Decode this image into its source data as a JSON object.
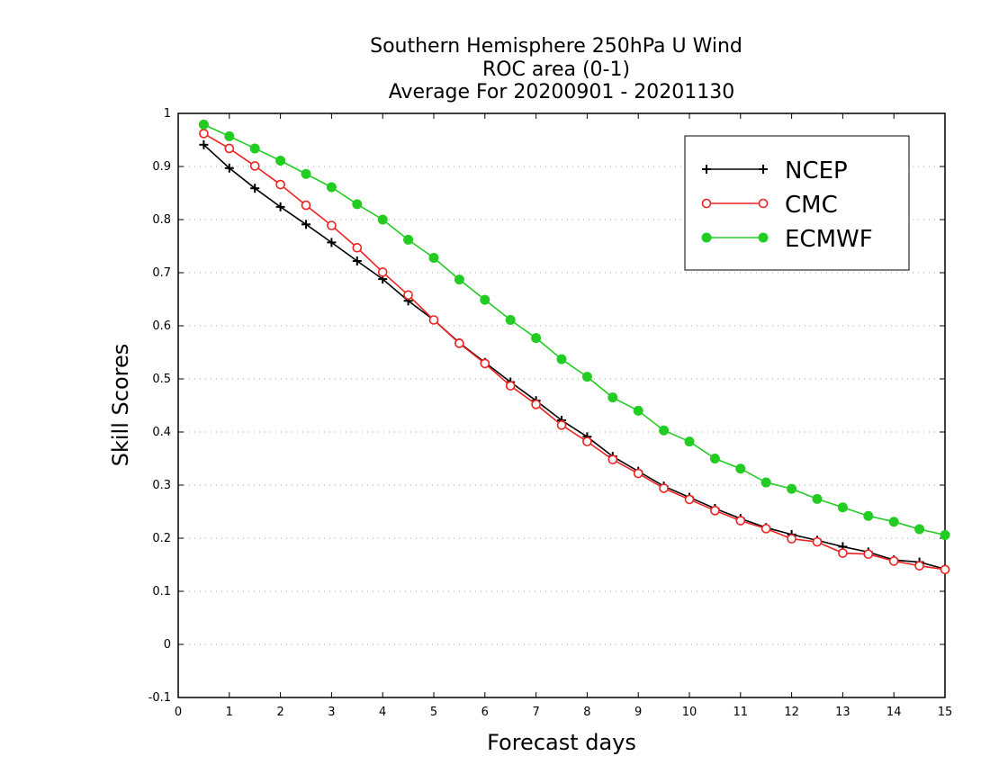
{
  "chart_data": {
    "type": "line",
    "title": [
      "Southern Hemisphere 250hPa U Wind",
      "ROC area (0-1)",
      "Average For 20200901 - 20201130"
    ],
    "xlabel": "Forecast days",
    "ylabel": "Skill Scores",
    "xlim": [
      0,
      15
    ],
    "ylim": [
      -0.1,
      1
    ],
    "x_ticks": [
      0,
      1,
      2,
      3,
      4,
      5,
      6,
      7,
      8,
      9,
      10,
      11,
      12,
      13,
      14,
      15
    ],
    "y_ticks": [
      -0.1,
      0,
      0.1,
      0.2,
      0.3,
      0.4,
      0.5,
      0.6,
      0.7,
      0.8,
      0.9,
      1
    ],
    "y_tick_labels": [
      "-0.1",
      "0",
      "0.1",
      "0.2",
      "0.3",
      "0.4",
      "0.5",
      "0.6",
      "0.7",
      "0.8",
      "0.9",
      "1"
    ],
    "grid": "horizontal dotted",
    "legend_position": "top-right",
    "x": [
      0.5,
      1,
      1.5,
      2,
      2.5,
      3,
      3.5,
      4,
      4.5,
      5,
      5.5,
      6,
      6.5,
      7,
      7.5,
      8,
      8.5,
      9,
      9.5,
      10,
      10.5,
      11,
      11.5,
      12,
      12.5,
      13,
      13.5,
      14,
      14.5,
      15
    ],
    "series": [
      {
        "name": "NCEP",
        "color": "#000000",
        "marker": "plus",
        "values": [
          0.941,
          0.897,
          0.859,
          0.824,
          0.791,
          0.757,
          0.722,
          0.688,
          0.647,
          0.611,
          0.568,
          0.531,
          0.494,
          0.459,
          0.422,
          0.391,
          0.354,
          0.326,
          0.298,
          0.277,
          0.256,
          0.237,
          0.22,
          0.207,
          0.196,
          0.184,
          0.174,
          0.159,
          0.155,
          0.142
        ]
      },
      {
        "name": "CMC",
        "color": "#ee2222",
        "marker": "open-circle",
        "values": [
          0.962,
          0.934,
          0.901,
          0.866,
          0.827,
          0.789,
          0.747,
          0.701,
          0.658,
          0.611,
          0.567,
          0.529,
          0.487,
          0.452,
          0.413,
          0.382,
          0.348,
          0.322,
          0.294,
          0.273,
          0.252,
          0.233,
          0.218,
          0.199,
          0.193,
          0.172,
          0.17,
          0.157,
          0.148,
          0.141
        ]
      },
      {
        "name": "ECMWF",
        "color": "#22cc22",
        "marker": "filled-circle",
        "values": [
          0.979,
          0.957,
          0.934,
          0.911,
          0.886,
          0.861,
          0.829,
          0.8,
          0.762,
          0.728,
          0.687,
          0.649,
          0.611,
          0.577,
          0.537,
          0.504,
          0.465,
          0.44,
          0.403,
          0.382,
          0.35,
          0.331,
          0.305,
          0.293,
          0.274,
          0.258,
          0.242,
          0.231,
          0.217,
          0.206
        ]
      }
    ]
  }
}
